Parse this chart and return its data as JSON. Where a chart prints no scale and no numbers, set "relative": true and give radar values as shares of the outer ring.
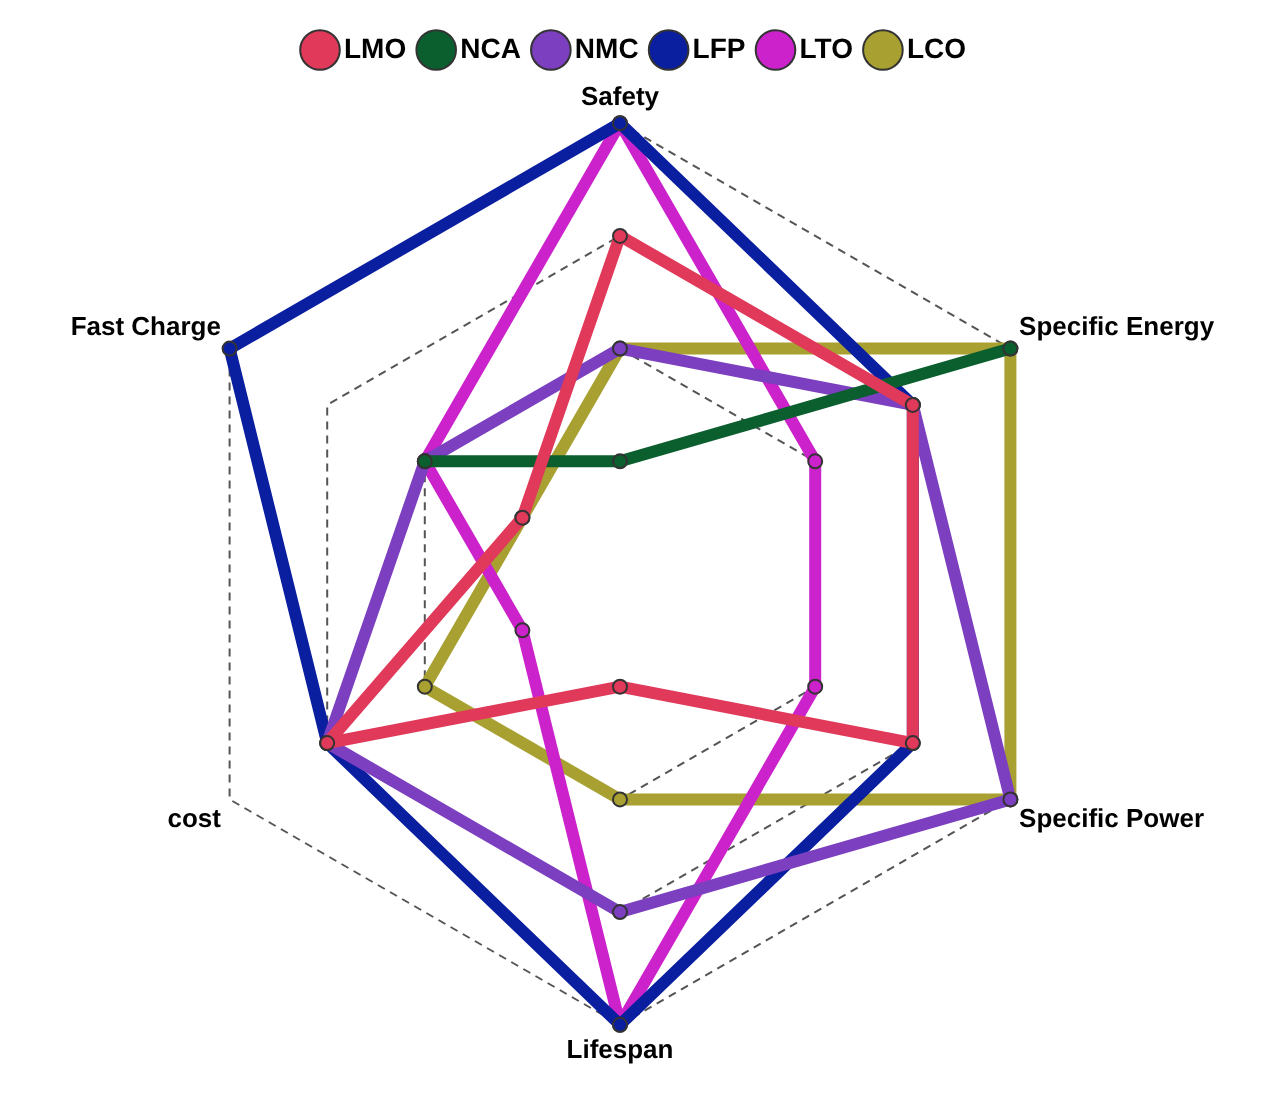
{
  "chart_data": {
    "type": "radar",
    "relative": true,
    "categories": [
      "Safety",
      "Specific Energy",
      "Specific Power",
      "Lifespan",
      "cost",
      "Fast Charge"
    ],
    "series": [
      {
        "name": "LMO",
        "color": "#e0395a",
        "values": [
          0.75,
          0.75,
          0.75,
          0.25,
          0.75,
          0.25
        ]
      },
      {
        "name": "NCA",
        "color": "#0b5e2e",
        "values": [
          0.25,
          1,
          null,
          null,
          null,
          0.5
        ]
      },
      {
        "name": "NMC",
        "color": "#7b3fbf",
        "values": [
          0.5,
          0.75,
          1,
          0.75,
          0.75,
          0.5
        ]
      },
      {
        "name": "LFP",
        "color": "#0a1ea0",
        "values": [
          1,
          0.75,
          0.75,
          1,
          0.75,
          1
        ]
      },
      {
        "name": "LTO",
        "color": "#cc22cc",
        "values": [
          1,
          0.5,
          0.5,
          1,
          0.25,
          0.5
        ]
      },
      {
        "name": "LCO",
        "color": "#a8a030",
        "values": [
          0.5,
          1,
          1,
          0.5,
          0.5,
          0.25
        ]
      }
    ],
    "grid": true,
    "legend": "top",
    "marker": "circle",
    "line_style": "solid"
  }
}
